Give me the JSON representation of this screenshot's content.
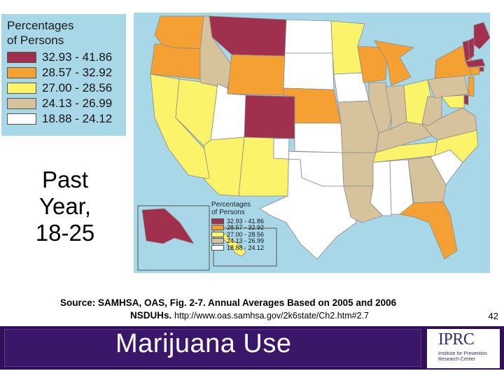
{
  "legend": {
    "title_line1": "Percentages",
    "title_line2": "of Persons",
    "classes": [
      {
        "label": "32.93 - 41.86",
        "color": "#a0304e"
      },
      {
        "label": "28.57 - 32.92",
        "color": "#f5a033"
      },
      {
        "label": "27.00 - 28.56",
        "color": "#fbf36a"
      },
      {
        "label": "24.13 - 26.99",
        "color": "#d7c39b"
      },
      {
        "label": "18.88 - 24.12",
        "color": "#ffffff"
      }
    ]
  },
  "inset_legend": {
    "title_line1": "Percentages",
    "title_line2": "of Persons",
    "labels": [
      "32.93 - 41.86",
      "28.57 - 32.92",
      "27.00 - 28.56",
      "24.13 - 26.99",
      "18.88 - 24.12"
    ]
  },
  "period": {
    "line1": "Past",
    "line2": "Year,",
    "line3": "18-25"
  },
  "source": {
    "line1": "Source:  SAMHSA, OAS, Fig. 2-7.   Annual Averages Based on 2005 and 2006",
    "line2_bold": "NSDUHs. ",
    "url": "http://www.oas.samhsa.gov/2k6state/Ch2.htm#2.7"
  },
  "slide_number": "42",
  "footer": {
    "title": "Marijuana Use"
  },
  "logo": {
    "text": "IPRC",
    "subtitle": "Institute for Prevention Research Center"
  },
  "map": {
    "water_color": "#a8d8e8",
    "states": [
      {
        "name": "Washington",
        "class": 1
      },
      {
        "name": "Oregon",
        "class": 1
      },
      {
        "name": "California",
        "class": 2
      },
      {
        "name": "Nevada",
        "class": 2
      },
      {
        "name": "Idaho",
        "class": 3
      },
      {
        "name": "Montana",
        "class": 0
      },
      {
        "name": "Wyoming",
        "class": 1
      },
      {
        "name": "Utah",
        "class": 4
      },
      {
        "name": "Arizona",
        "class": 2
      },
      {
        "name": "Colorado",
        "class": 0
      },
      {
        "name": "New Mexico",
        "class": 2
      },
      {
        "name": "North Dakota",
        "class": 4
      },
      {
        "name": "South Dakota",
        "class": 4
      },
      {
        "name": "Nebraska",
        "class": 1
      },
      {
        "name": "Kansas",
        "class": 4
      },
      {
        "name": "Oklahoma",
        "class": 4
      },
      {
        "name": "Texas",
        "class": 4
      },
      {
        "name": "Minnesota",
        "class": 2
      },
      {
        "name": "Iowa",
        "class": 4
      },
      {
        "name": "Missouri",
        "class": 3
      },
      {
        "name": "Arkansas",
        "class": 3
      },
      {
        "name": "Louisiana",
        "class": 3
      },
      {
        "name": "Wisconsin",
        "class": 1
      },
      {
        "name": "Illinois",
        "class": 3
      },
      {
        "name": "Michigan",
        "class": 1
      },
      {
        "name": "Indiana",
        "class": 3
      },
      {
        "name": "Ohio",
        "class": 2
      },
      {
        "name": "Kentucky",
        "class": 3
      },
      {
        "name": "Tennessee",
        "class": 2
      },
      {
        "name": "Mississippi",
        "class": 4
      },
      {
        "name": "Alabama",
        "class": 4
      },
      {
        "name": "Georgia",
        "class": 3
      },
      {
        "name": "Florida",
        "class": 1
      },
      {
        "name": "South Carolina",
        "class": 4
      },
      {
        "name": "North Carolina",
        "class": 2
      },
      {
        "name": "Virginia",
        "class": 3
      },
      {
        "name": "West Virginia",
        "class": 3
      },
      {
        "name": "Pennsylvania",
        "class": 3
      },
      {
        "name": "New York",
        "class": 1
      },
      {
        "name": "Maine",
        "class": 0
      },
      {
        "name": "New Hampshire",
        "class": 0
      },
      {
        "name": "Vermont",
        "class": 0
      },
      {
        "name": "Massachusetts",
        "class": 0
      },
      {
        "name": "Rhode Island",
        "class": 0
      },
      {
        "name": "Connecticut",
        "class": 1
      },
      {
        "name": "New Jersey",
        "class": 1
      },
      {
        "name": "Delaware",
        "class": 0
      },
      {
        "name": "Maryland",
        "class": 2
      },
      {
        "name": "Alaska",
        "class": 0
      },
      {
        "name": "Hawaii",
        "class": 2
      }
    ]
  }
}
